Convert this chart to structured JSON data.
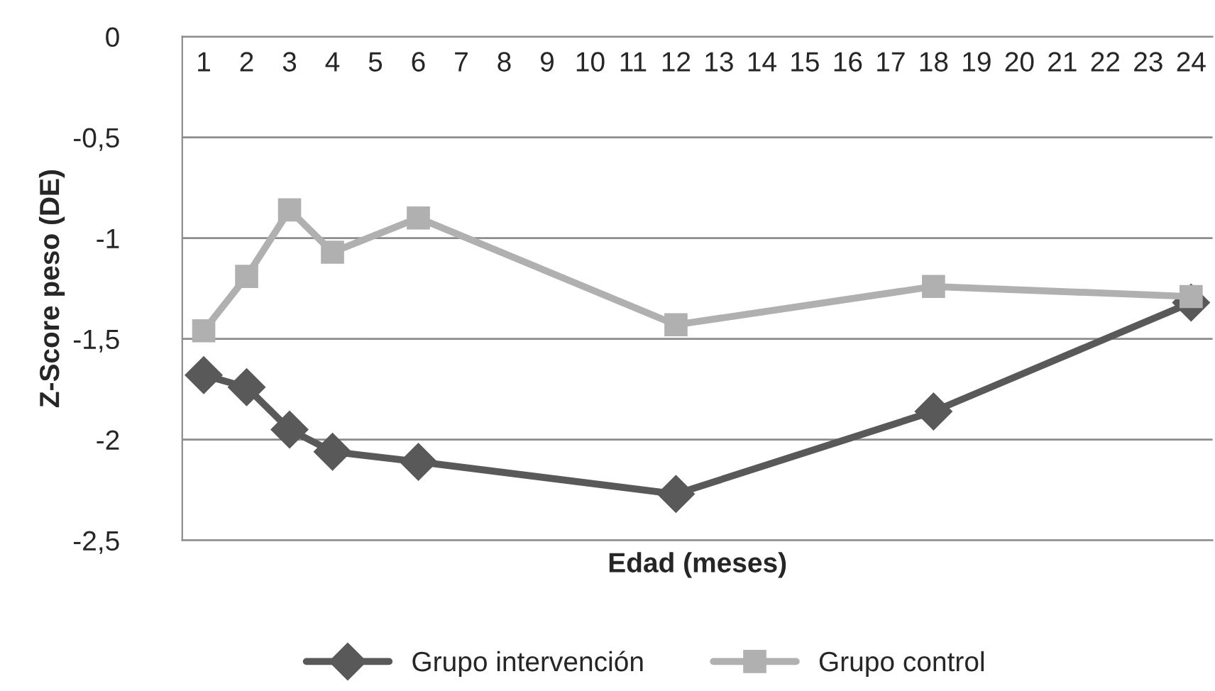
{
  "chart_data": {
    "type": "line",
    "xlabel": "Edad (meses)",
    "ylabel": "Z-Score peso (DE)",
    "categories": [
      "1",
      "2",
      "3",
      "4",
      "5",
      "6",
      "7",
      "8",
      "9",
      "10",
      "11",
      "12",
      "13",
      "14",
      "15",
      "16",
      "17",
      "18",
      "19",
      "20",
      "21",
      "22",
      "23",
      "24"
    ],
    "series": [
      {
        "name": "Grupo intervención",
        "color": "#595959",
        "marker": "diamond",
        "values": [
          -1.68,
          -1.74,
          -1.95,
          -2.06,
          null,
          -2.11,
          null,
          null,
          null,
          null,
          null,
          -2.27,
          null,
          null,
          null,
          null,
          null,
          -1.86,
          null,
          null,
          null,
          null,
          null,
          -1.32
        ]
      },
      {
        "name": "Grupo control",
        "color": "#b0b0b0",
        "marker": "square",
        "values": [
          -1.46,
          -1.19,
          -0.86,
          -1.07,
          null,
          -0.9,
          null,
          null,
          null,
          null,
          null,
          -1.43,
          null,
          null,
          null,
          null,
          null,
          -1.24,
          null,
          null,
          null,
          null,
          null,
          -1.29
        ]
      }
    ],
    "ylim": [
      -2.5,
      0
    ],
    "yticks": [
      {
        "value": 0,
        "label": "0"
      },
      {
        "value": -0.5,
        "label": "-0,5"
      },
      {
        "value": -1,
        "label": "-1"
      },
      {
        "value": -1.5,
        "label": "-1,5"
      },
      {
        "value": -2,
        "label": "-2"
      },
      {
        "value": -2.5,
        "label": "-2,5"
      }
    ],
    "grid": "y",
    "legend": "bottom",
    "line_style": "solid"
  }
}
